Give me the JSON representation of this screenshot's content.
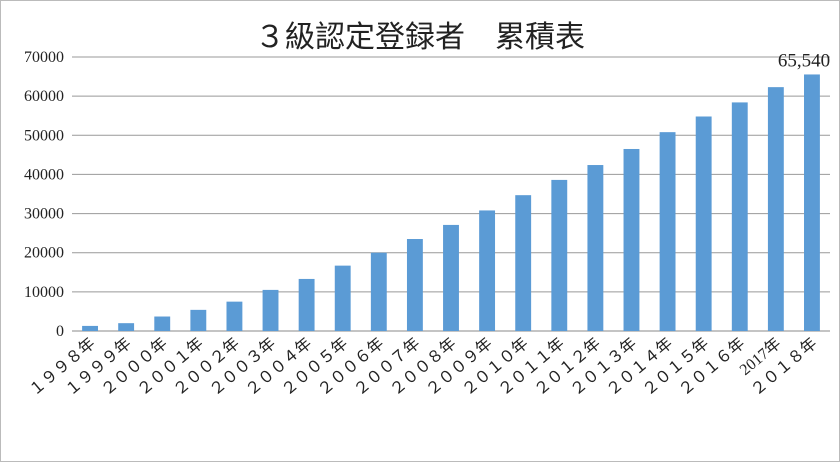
{
  "chart_data": {
    "type": "bar",
    "title": "３級認定登録者　累積表",
    "categories": [
      "１９９８年",
      "１９９９年",
      "２０００年",
      "２００１年",
      "２００２年",
      "２００３年",
      "２００４年",
      "２００５年",
      "２００６年",
      "２００７年",
      "２００８年",
      "２００９年",
      "２０１０年",
      "２０１１年",
      "２０１２年",
      "２０１３年",
      "２０１４年",
      "２０１５年",
      "２０１６年",
      "2017年",
      "２０１８年"
    ],
    "values": [
      1300,
      2000,
      3700,
      5400,
      7500,
      10500,
      13300,
      16700,
      20000,
      23500,
      27100,
      30800,
      34700,
      38600,
      42400,
      46500,
      50800,
      54800,
      58400,
      62300,
      65540
    ],
    "value_labels": [
      null,
      null,
      null,
      null,
      null,
      null,
      null,
      null,
      null,
      null,
      null,
      null,
      null,
      null,
      null,
      null,
      null,
      null,
      null,
      null,
      "65,540"
    ],
    "color": "#5b9bd5",
    "ylim": [
      0,
      70000
    ],
    "yticks": [
      0,
      10000,
      20000,
      30000,
      40000,
      50000,
      60000,
      70000
    ],
    "grid": true
  }
}
